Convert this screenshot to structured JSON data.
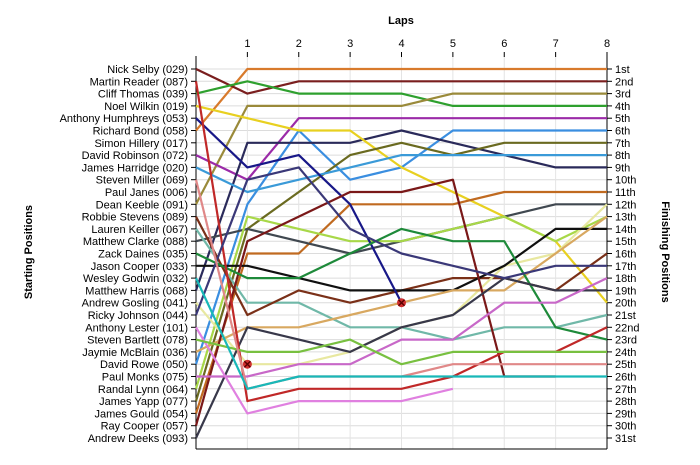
{
  "chart_data": {
    "type": "line",
    "title": "",
    "xlabel": "Laps",
    "ylabel_left": "Starting Positions",
    "ylabel_right": "Finishing Positions",
    "x": [
      0,
      1,
      2,
      3,
      4,
      5,
      6,
      7,
      8
    ],
    "x_ticks": [
      "1",
      "2",
      "3",
      "4",
      "5",
      "6",
      "7",
      "8"
    ],
    "ylim": [
      1,
      31
    ],
    "grid": true,
    "starting_positions": [
      "Nick Selby (029)",
      "Martin Reader (087)",
      "Cliff Thomas (039)",
      "Noel Wilkin (019)",
      "Anthony Humphreys (053)",
      "Richard Bond (058)",
      "Simon Hillery (017)",
      "David Robinson (072)",
      "James Harridge (020)",
      "Steven Miller (069)",
      "Paul Janes (006)",
      "Dean Keeble (091)",
      "Robbie Stevens (089)",
      "Lauren Keiller (067)",
      "Matthew Clarke (088)",
      "Zack Daines (035)",
      "Jason Cooper (033)",
      "Wesley Godwin (032)",
      "Matthew Harris (068)",
      "Andrew Gosling (041)",
      "Ricky Johnson (044)",
      "Anthony Lester (101)",
      "Steven Bartlett (078)",
      "Jaymie McBlain (036)",
      "David Rowe (050)",
      "Paul Monks (075)",
      "Randal Lynn (064)",
      "James Yapp (077)",
      "James Gould (054)",
      "Ray Cooper (057)",
      "Andrew Deeks (093)"
    ],
    "finishing_positions": [
      "1st",
      "2nd",
      "3rd",
      "4th",
      "5th",
      "6th",
      "7th",
      "8th",
      "9th",
      "10th",
      "11th",
      "12th",
      "13th",
      "14th",
      "15th",
      "16th",
      "17th",
      "18th",
      "19th",
      "20th",
      "21st",
      "22nd",
      "23rd",
      "24th",
      "25th",
      "26th",
      "27th",
      "28th",
      "29th",
      "30th",
      "31st"
    ],
    "series": [
      {
        "color": "#d87a2c",
        "values": [
          6,
          1,
          1,
          1,
          1,
          1,
          1,
          1,
          1
        ]
      },
      {
        "color": "#7a1e1e",
        "values": [
          1,
          3,
          2,
          2,
          2,
          2,
          2,
          2,
          2
        ]
      },
      {
        "color": "#2ea02e",
        "values": [
          3,
          2,
          3,
          3,
          3,
          4,
          4,
          4,
          4
        ]
      },
      {
        "color": "#9a8a3a",
        "values": [
          12,
          4,
          4,
          4,
          4,
          3,
          3,
          3,
          3
        ]
      },
      {
        "color": "#9b2aa8",
        "values": [
          8,
          10,
          5,
          5,
          5,
          5,
          5,
          5,
          5
        ]
      },
      {
        "color": "#3a8ee0",
        "values": [
          25,
          12,
          6,
          10,
          9,
          6,
          6,
          6,
          6
        ]
      },
      {
        "color": "#2a2a5a",
        "values": [
          19,
          7,
          7,
          7,
          6,
          7,
          8,
          9,
          9
        ]
      },
      {
        "color": "#e8d020",
        "values": [
          4,
          5,
          6,
          6,
          9,
          11,
          13,
          15,
          20
        ]
      },
      {
        "color": "#6a6a20",
        "values": [
          28,
          14,
          11,
          8,
          7,
          8,
          7,
          7,
          7
        ]
      },
      {
        "color": "#3a9ad8",
        "values": [
          9,
          11,
          10,
          9,
          8,
          8,
          8,
          8,
          8
        ]
      },
      {
        "color": "#c06a20",
        "values": [
          29,
          16,
          16,
          12,
          12,
          12,
          11,
          11,
          11
        ]
      },
      {
        "color": "#404850",
        "values": [
          15,
          14,
          15,
          16,
          15,
          14,
          13,
          12,
          12
        ]
      },
      {
        "color": "#a8d848",
        "values": [
          27,
          13,
          14,
          15,
          15,
          14,
          13,
          15,
          13
        ]
      },
      {
        "color": "#70b8a8",
        "values": [
          14,
          20,
          20,
          22,
          22,
          23,
          22,
          22,
          21
        ]
      },
      {
        "color": "#7a3018",
        "values": [
          13,
          21,
          19,
          20,
          19,
          18,
          18,
          19,
          16
        ]
      },
      {
        "color": "#e8e8a0",
        "values": [
          20,
          25,
          25,
          24,
          22,
          21,
          17,
          16,
          12
        ]
      },
      {
        "color": "#101010",
        "values": [
          17,
          17,
          18,
          19,
          19,
          19,
          17,
          14,
          14
        ]
      },
      {
        "color": "#d8a860",
        "values": [
          24,
          22,
          22,
          21,
          20,
          19,
          19,
          16,
          13
        ]
      },
      {
        "color": "#181888",
        "values": [
          5,
          9,
          8,
          12,
          20,
          0,
          0,
          0,
          0
        ]
      },
      {
        "color": "#7a1818",
        "values": [
          30,
          15,
          13,
          11,
          11,
          10,
          26,
          26,
          0
        ]
      },
      {
        "color": "#1e8a3a",
        "values": [
          16,
          18,
          18,
          16,
          14,
          15,
          15,
          22,
          23
        ]
      },
      {
        "color": "#38384a",
        "values": [
          31,
          22,
          23,
          24,
          22,
          21,
          18,
          19,
          19
        ]
      },
      {
        "color": "#c02828",
        "values": [
          2,
          28,
          27,
          27,
          27,
          26,
          24,
          24,
          22
        ]
      },
      {
        "color": "#c868c8",
        "values": [
          26,
          26,
          25,
          25,
          23,
          23,
          20,
          20,
          18
        ]
      },
      {
        "color": "#3a3878",
        "values": [
          21,
          10,
          9,
          14,
          16,
          17,
          18,
          17,
          17
        ]
      },
      {
        "color": "#e080e0",
        "values": [
          22,
          29,
          28,
          28,
          28,
          27,
          0,
          0,
          0
        ]
      },
      {
        "color": "#78c040",
        "values": [
          23,
          24,
          24,
          23,
          25,
          24,
          24,
          24,
          24
        ]
      },
      {
        "color": "#e08888",
        "values": [
          10,
          27,
          26,
          26,
          26,
          25,
          25,
          25,
          25
        ]
      },
      {
        "color": "#18b8b8",
        "values": [
          18,
          27,
          26,
          26,
          26,
          26,
          26,
          26,
          26
        ]
      }
    ],
    "retirements": [
      {
        "lap": 4,
        "position": 20
      },
      {
        "lap": 1,
        "position": 25
      }
    ]
  }
}
